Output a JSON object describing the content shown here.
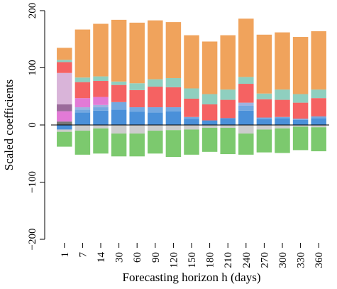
{
  "chart_data": {
    "type": "bar",
    "stacked": true,
    "diverging": true,
    "xlabel": "Forecasting horizon h (days)",
    "ylabel": "Scaled coefficients",
    "ylim": [
      -200,
      200
    ],
    "yticks": [
      -200,
      -100,
      0,
      100,
      200
    ],
    "zero_line": true,
    "grid": false,
    "categories": [
      "1",
      "7",
      "14",
      "30",
      "60",
      "90",
      "120",
      "150",
      "180",
      "210",
      "240",
      "270",
      "300",
      "330",
      "360"
    ],
    "series": [
      {
        "color": "#4a90d9",
        "values": [
          -8,
          22,
          25,
          27,
          23,
          22,
          24,
          11,
          8,
          12,
          25,
          10,
          12,
          9,
          12
        ]
      },
      {
        "color": "#74a8e0",
        "values": [
          0,
          5,
          6,
          13,
          8,
          9,
          7,
          3,
          0,
          0,
          9,
          3,
          2,
          2,
          3
        ]
      },
      {
        "color": "#9fb2e0",
        "values": [
          0,
          4,
          4,
          0,
          0,
          0,
          0,
          0,
          0,
          0,
          5,
          0,
          0,
          0,
          0
        ]
      },
      {
        "color": "#777777",
        "values": [
          6,
          0,
          0,
          0,
          0,
          0,
          0,
          0,
          0,
          0,
          0,
          0,
          0,
          0,
          0
        ]
      },
      {
        "color": "#e27ad6",
        "values": [
          18,
          16,
          14,
          0,
          0,
          0,
          0,
          0,
          0,
          0,
          0,
          0,
          0,
          0,
          0
        ]
      },
      {
        "color": "#9b6b9b",
        "values": [
          12,
          0,
          0,
          0,
          0,
          0,
          0,
          0,
          0,
          0,
          0,
          0,
          0,
          0,
          0
        ]
      },
      {
        "color": "#d9b4d9",
        "values": [
          55,
          0,
          0,
          0,
          0,
          0,
          0,
          0,
          0,
          0,
          0,
          0,
          0,
          0,
          0
        ]
      },
      {
        "color": "#f56262",
        "values": [
          19,
          28,
          28,
          30,
          30,
          36,
          35,
          32,
          28,
          32,
          33,
          32,
          30,
          28,
          32
        ]
      },
      {
        "color": "#8fcfbf",
        "values": [
          4,
          8,
          8,
          6,
          12,
          13,
          16,
          18,
          18,
          18,
          12,
          10,
          18,
          15,
          15
        ]
      },
      {
        "color": "#f0a35c",
        "values": [
          21,
          84,
          92,
          108,
          106,
          103,
          98,
          93,
          92,
          95,
          102,
          103,
          100,
          100,
          102
        ]
      },
      {
        "color": "#cccccc",
        "values": [
          -4,
          -10,
          -6,
          -15,
          -15,
          -10,
          -9,
          -8,
          -5,
          -5,
          -15,
          -8,
          -6,
          -3,
          -4
        ]
      },
      {
        "color": "#7cc96e",
        "values": [
          -26,
          -42,
          -44,
          -40,
          -40,
          -40,
          -47,
          -44,
          -42,
          -46,
          -37,
          -40,
          -43,
          -41,
          -42
        ]
      }
    ]
  }
}
